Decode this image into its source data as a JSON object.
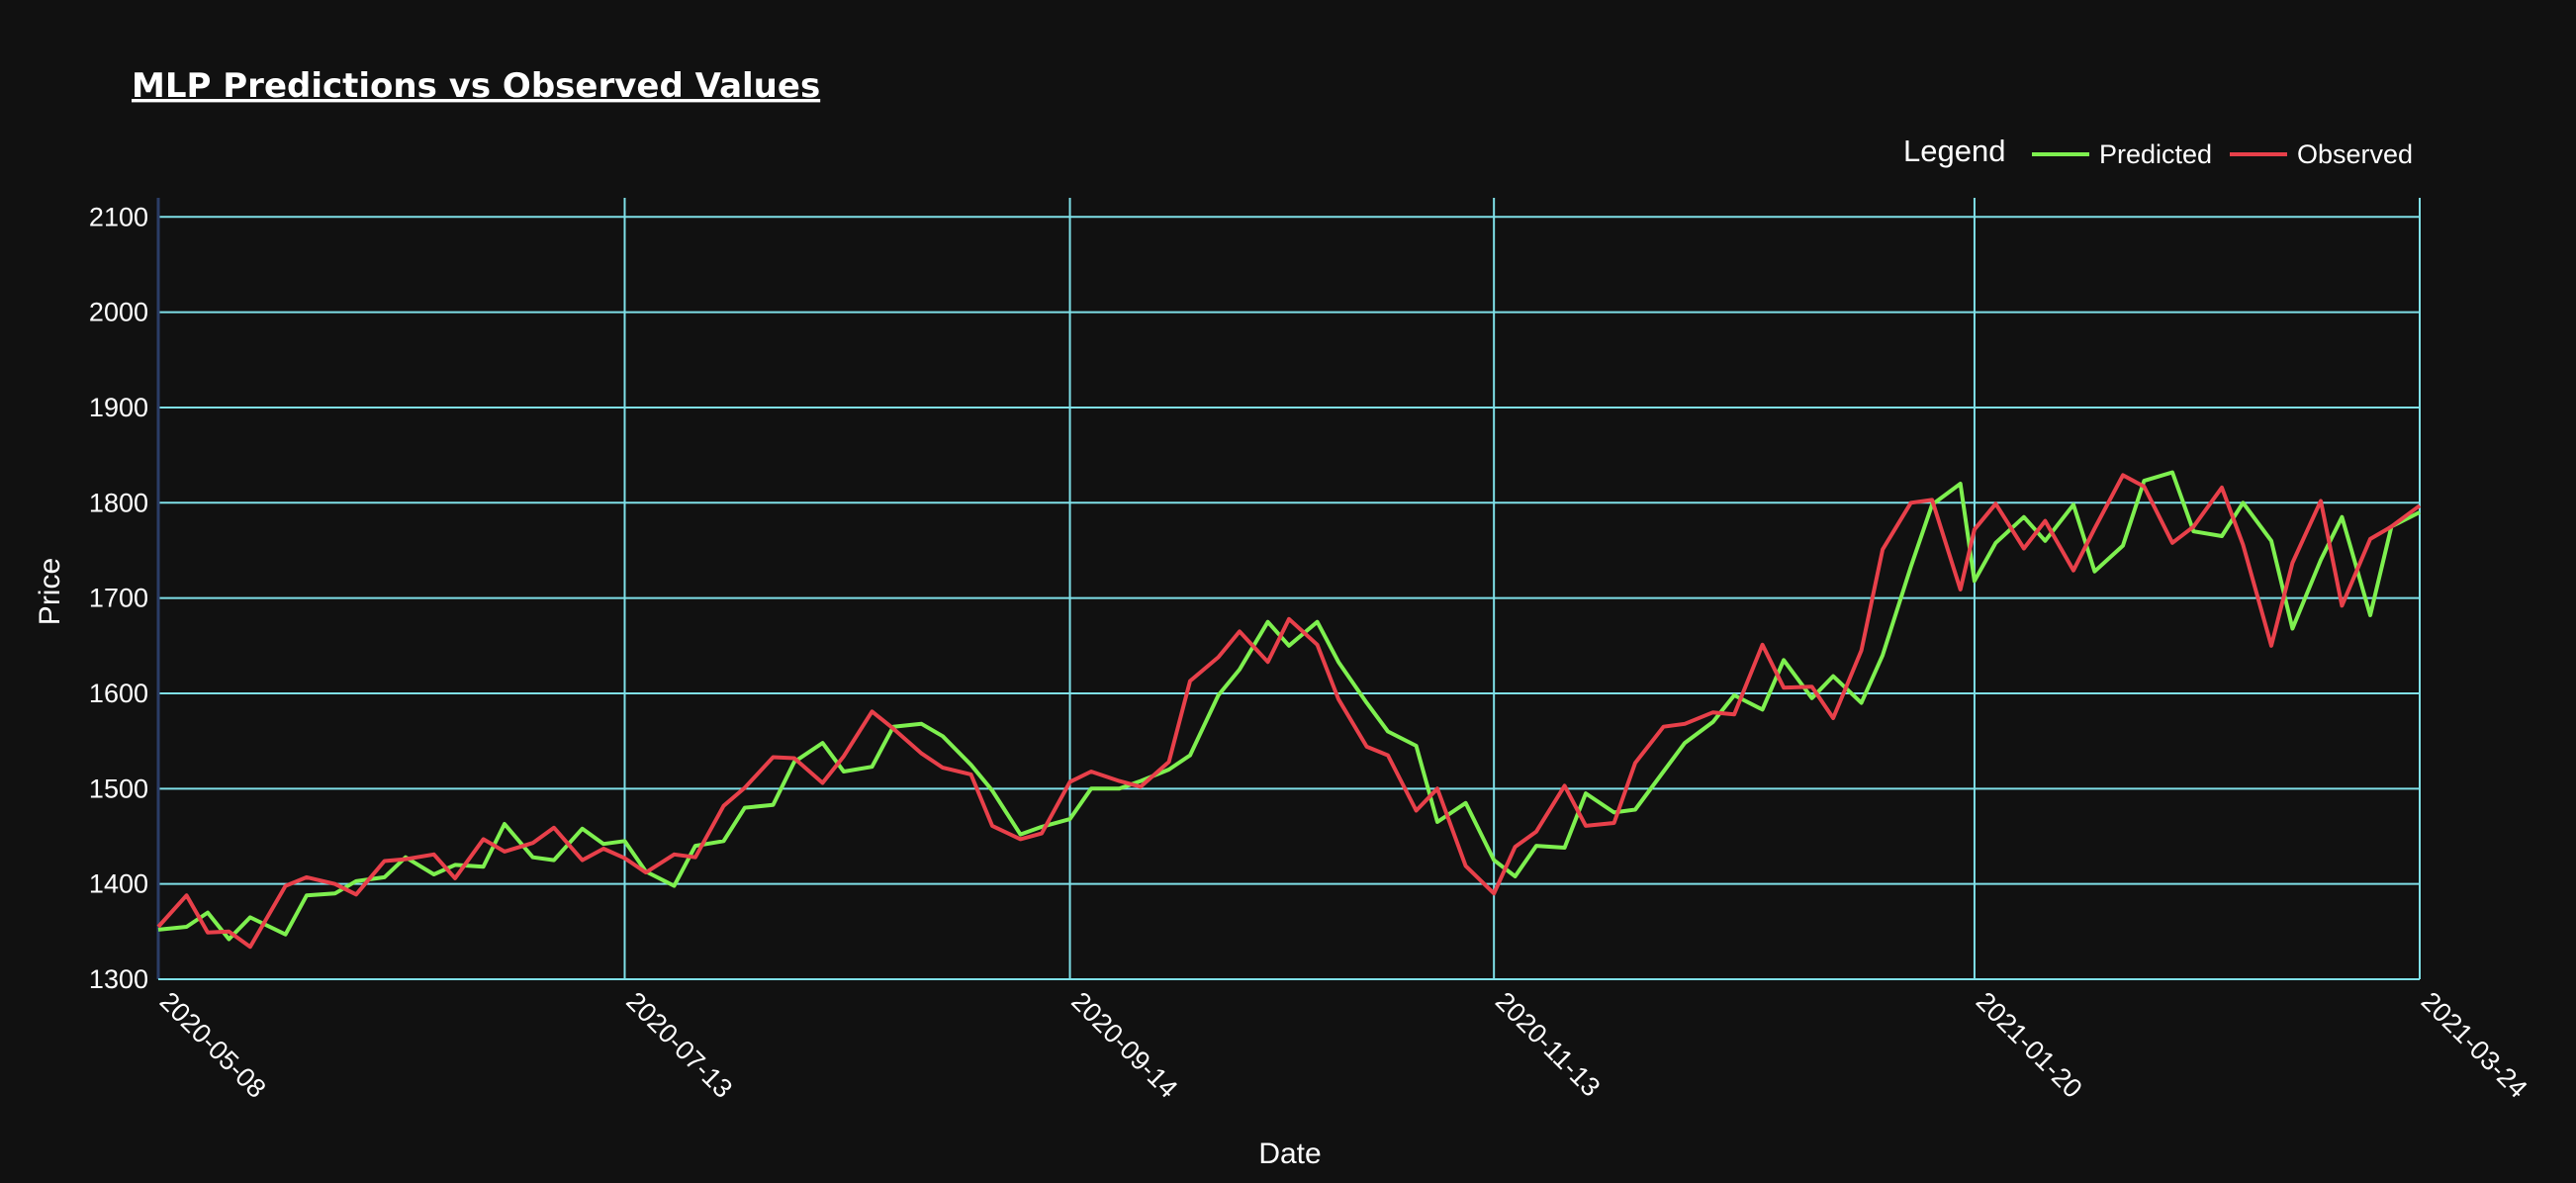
{
  "chart_data": {
    "type": "line",
    "title": "MLP Predictions vs Observed Values",
    "xlabel": "Date",
    "ylabel": "Price",
    "x_range": [
      "2020-05-08",
      "2021-03-24"
    ],
    "ylim": [
      1300,
      2120
    ],
    "x_ticks": [
      "2020-05-08",
      "2020-07-13",
      "2020-09-14",
      "2020-11-13",
      "2021-01-20",
      "2021-03-24"
    ],
    "y_ticks": [
      1300,
      1400,
      1500,
      1600,
      1700,
      1800,
      1900,
      2000,
      2100
    ],
    "grid": true,
    "legend": {
      "title": "Legend",
      "placement": "top-right"
    },
    "colors": {
      "background": "#111111",
      "grid": "#7fe0e8",
      "axis_line": "#2b3d66"
    },
    "series": [
      {
        "name": "Predicted",
        "color": "#7ef04f",
        "points": [
          [
            "2020-05-08",
            1352
          ],
          [
            "2020-05-12",
            1355
          ],
          [
            "2020-05-15",
            1370
          ],
          [
            "2020-05-18",
            1342
          ],
          [
            "2020-05-21",
            1365
          ],
          [
            "2020-05-26",
            1347
          ],
          [
            "2020-05-29",
            1388
          ],
          [
            "2020-06-02",
            1390
          ],
          [
            "2020-06-05",
            1403
          ],
          [
            "2020-06-09",
            1407
          ],
          [
            "2020-06-12",
            1428
          ],
          [
            "2020-06-16",
            1410
          ],
          [
            "2020-06-19",
            1420
          ],
          [
            "2020-06-23",
            1418
          ],
          [
            "2020-06-26",
            1463
          ],
          [
            "2020-06-30",
            1428
          ],
          [
            "2020-07-03",
            1425
          ],
          [
            "2020-07-07",
            1458
          ],
          [
            "2020-07-10",
            1442
          ],
          [
            "2020-07-13",
            1445
          ],
          [
            "2020-07-16",
            1413
          ],
          [
            "2020-07-20",
            1398
          ],
          [
            "2020-07-23",
            1440
          ],
          [
            "2020-07-27",
            1445
          ],
          [
            "2020-07-30",
            1480
          ],
          [
            "2020-08-03",
            1483
          ],
          [
            "2020-08-06",
            1528
          ],
          [
            "2020-08-10",
            1548
          ],
          [
            "2020-08-13",
            1518
          ],
          [
            "2020-08-17",
            1523
          ],
          [
            "2020-08-20",
            1565
          ],
          [
            "2020-08-24",
            1568
          ],
          [
            "2020-08-27",
            1555
          ],
          [
            "2020-08-31",
            1525
          ],
          [
            "2020-09-03",
            1498
          ],
          [
            "2020-09-07",
            1452
          ],
          [
            "2020-09-10",
            1460
          ],
          [
            "2020-09-14",
            1468
          ],
          [
            "2020-09-17",
            1500
          ],
          [
            "2020-09-21",
            1500
          ],
          [
            "2020-09-24",
            1508
          ],
          [
            "2020-09-28",
            1520
          ],
          [
            "2020-10-01",
            1535
          ],
          [
            "2020-10-05",
            1598
          ],
          [
            "2020-10-08",
            1625
          ],
          [
            "2020-10-12",
            1675
          ],
          [
            "2020-10-15",
            1650
          ],
          [
            "2020-10-19",
            1675
          ],
          [
            "2020-10-22",
            1633
          ],
          [
            "2020-10-26",
            1590
          ],
          [
            "2020-10-29",
            1560
          ],
          [
            "2020-11-02",
            1545
          ],
          [
            "2020-11-05",
            1465
          ],
          [
            "2020-11-09",
            1485
          ],
          [
            "2020-11-13",
            1425
          ],
          [
            "2020-11-16",
            1408
          ],
          [
            "2020-11-19",
            1440
          ],
          [
            "2020-11-23",
            1438
          ],
          [
            "2020-11-26",
            1495
          ],
          [
            "2020-11-30",
            1475
          ],
          [
            "2020-12-03",
            1478
          ],
          [
            "2020-12-07",
            1518
          ],
          [
            "2020-12-10",
            1548
          ],
          [
            "2020-12-14",
            1570
          ],
          [
            "2020-12-17",
            1598
          ],
          [
            "2020-12-21",
            1583
          ],
          [
            "2020-12-24",
            1635
          ],
          [
            "2020-12-28",
            1595
          ],
          [
            "2020-12-31",
            1618
          ],
          [
            "2021-01-04",
            1590
          ],
          [
            "2021-01-07",
            1640
          ],
          [
            "2021-01-11",
            1733
          ],
          [
            "2021-01-14",
            1798
          ],
          [
            "2021-01-18",
            1820
          ],
          [
            "2021-01-20",
            1718
          ],
          [
            "2021-01-23",
            1758
          ],
          [
            "2021-01-27",
            1785
          ],
          [
            "2021-01-30",
            1760
          ],
          [
            "2021-02-03",
            1798
          ],
          [
            "2021-02-06",
            1728
          ],
          [
            "2021-02-10",
            1755
          ],
          [
            "2021-02-13",
            1823
          ],
          [
            "2021-02-17",
            1832
          ],
          [
            "2021-02-20",
            1770
          ],
          [
            "2021-02-24",
            1765
          ],
          [
            "2021-02-27",
            1800
          ],
          [
            "2021-03-03",
            1760
          ],
          [
            "2021-03-06",
            1668
          ],
          [
            "2021-03-10",
            1740
          ],
          [
            "2021-03-13",
            1785
          ],
          [
            "2021-03-17",
            1682
          ],
          [
            "2021-03-20",
            1775
          ],
          [
            "2021-03-24",
            1790
          ]
        ]
      },
      {
        "name": "Observed",
        "color": "#e8404a",
        "points": []
      }
    ]
  }
}
